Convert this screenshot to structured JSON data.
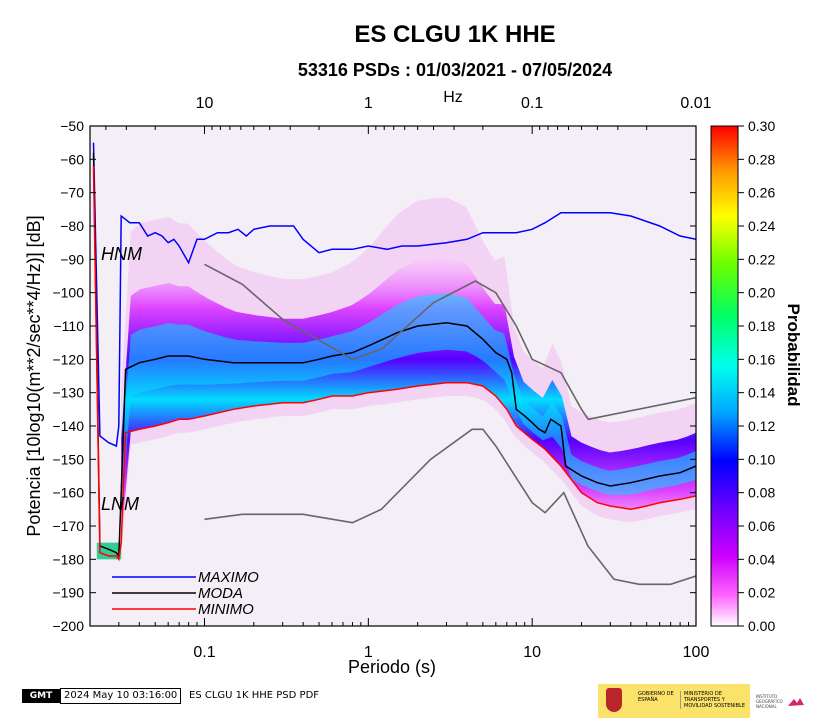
{
  "chart_data": {
    "type": "heatmap",
    "title": "ES CLGU 1K HHE",
    "subtitle": "53316 PSDs : 01/03/2021 - 07/05/2024",
    "xlabel": "Periodo (s)",
    "ylabel": "Potencia [10log10(m**2/sec**4/Hz)] [dB]",
    "top_axis_unit": "Hz",
    "x_scale": "log",
    "xlim": [
      0.02,
      100
    ],
    "ylim": [
      -200,
      -50
    ],
    "x_ticks": [
      0.1,
      1,
      10,
      100
    ],
    "x_tick_labels": [
      "0.1",
      "1",
      "10",
      "100"
    ],
    "top_ticks_hz": [
      10,
      1,
      0.1,
      0.01
    ],
    "top_tick_labels": [
      "10",
      "1",
      "0.1",
      "0.01"
    ],
    "y_ticks": [
      -50,
      -60,
      -70,
      -80,
      -90,
      -100,
      -110,
      -120,
      -130,
      -140,
      -150,
      -160,
      -170,
      -180,
      -190,
      -200
    ],
    "y_tick_labels": [
      "−50",
      "−60",
      "−70",
      "−80",
      "−90",
      "−100",
      "−110",
      "−120",
      "−130",
      "−140",
      "−150",
      "−160",
      "−170",
      "−180",
      "−190",
      "−200"
    ],
    "colorbar": {
      "label": "Probabilidad",
      "range": [
        0,
        0.3
      ],
      "ticks": [
        "0.00",
        "0.02",
        "0.04",
        "0.06",
        "0.08",
        "0.10",
        "0.12",
        "0.14",
        "0.16",
        "0.18",
        "0.20",
        "0.22",
        "0.24",
        "0.26",
        "0.28",
        "0.30"
      ]
    },
    "annotations": [
      "HNM",
      "LNM"
    ],
    "series": [
      {
        "name": "MAXIMO",
        "color": "#0000ff",
        "x": [
          0.021,
          0.023,
          0.026,
          0.029,
          0.03,
          0.031,
          0.035,
          0.04,
          0.045,
          0.05,
          0.055,
          0.06,
          0.065,
          0.07,
          0.08,
          0.09,
          0.1,
          0.12,
          0.14,
          0.16,
          0.18,
          0.2,
          0.25,
          0.3,
          0.35,
          0.4,
          0.5,
          0.6,
          0.8,
          1.0,
          1.3,
          1.6,
          2,
          3,
          4,
          5,
          6,
          8,
          10,
          12,
          15,
          20,
          30,
          40,
          60,
          80,
          100
        ],
        "y": [
          -55,
          -143,
          -145,
          -146,
          -140,
          -77,
          -79,
          -79,
          -83,
          -82,
          -83,
          -85,
          -84,
          -86,
          -91,
          -84,
          -84,
          -82,
          -82,
          -81,
          -83,
          -81,
          -80,
          -80,
          -80,
          -84,
          -88,
          -87,
          -87,
          -86,
          -87,
          -86,
          -86,
          -85,
          -84,
          -82,
          -82,
          -82,
          -81,
          -79,
          -76,
          -76,
          -76,
          -77,
          -80,
          -83,
          -84
        ]
      },
      {
        "name": "MODA",
        "color": "#000000",
        "x": [
          0.021,
          0.023,
          0.026,
          0.029,
          0.03,
          0.031,
          0.033,
          0.04,
          0.05,
          0.06,
          0.07,
          0.08,
          0.1,
          0.15,
          0.2,
          0.3,
          0.4,
          0.5,
          0.6,
          0.8,
          1.0,
          1.5,
          2,
          3,
          4,
          5,
          6,
          7,
          7.5,
          8,
          9,
          10,
          11,
          12,
          13,
          14,
          15,
          16,
          20,
          25,
          30,
          40,
          60,
          80,
          100
        ],
        "y": [
          -58,
          -176,
          -177,
          -178,
          -179,
          -160,
          -123,
          -121,
          -120,
          -119,
          -119,
          -119,
          -120,
          -121,
          -121,
          -121,
          -121,
          -120,
          -119,
          -118,
          -116,
          -112,
          -110,
          -109,
          -110,
          -114,
          -118,
          -120,
          -124,
          -135,
          -137,
          -139,
          -141,
          -142,
          -138,
          -139,
          -140,
          -152,
          -155,
          -157,
          -158,
          -157,
          -155,
          -154,
          -152
        ]
      },
      {
        "name": "MINIMO",
        "color": "#ff0000",
        "x": [
          0.021,
          0.023,
          0.026,
          0.029,
          0.03,
          0.031,
          0.033,
          0.04,
          0.05,
          0.06,
          0.07,
          0.08,
          0.1,
          0.15,
          0.2,
          0.3,
          0.4,
          0.5,
          0.6,
          0.8,
          1.0,
          1.5,
          2,
          3,
          4,
          5,
          6,
          7,
          8,
          10,
          12,
          15,
          20,
          25,
          30,
          40,
          50,
          60,
          80,
          100
        ],
        "y": [
          -62,
          -178,
          -179,
          -179,
          -180,
          -175,
          -142,
          -141,
          -140,
          -139,
          -138,
          -138,
          -137,
          -135,
          -134,
          -133,
          -133,
          -132,
          -131,
          -131,
          -130,
          -129,
          -128,
          -127,
          -127,
          -128,
          -131,
          -135,
          -140,
          -144,
          -147,
          -152,
          -160,
          -163,
          -164,
          -165,
          -164,
          -163,
          -162,
          -161
        ]
      },
      {
        "name": "HNM",
        "color": "#666666",
        "x": [
          0.1,
          0.17,
          0.3,
          0.8,
          1.2,
          2.5,
          4.5,
          6,
          8,
          10,
          15,
          20,
          22,
          100
        ],
        "y": [
          -91.5,
          -97.5,
          -108,
          -120,
          -117,
          -103,
          -96.5,
          -100,
          -110,
          -120,
          -124,
          -135,
          -138,
          -131.5
        ]
      },
      {
        "name": "LNM",
        "color": "#666666",
        "x": [
          0.1,
          0.17,
          0.4,
          0.8,
          1.2,
          2.4,
          4.3,
          5,
          6,
          10,
          12,
          15.6,
          21.9,
          31.6,
          45,
          70,
          100
        ],
        "y": [
          -168,
          -166.5,
          -166.5,
          -169,
          -165,
          -150,
          -141,
          -141,
          -146,
          -163,
          -166,
          -160,
          -176,
          -186,
          -187.5,
          -187.5,
          -185
        ]
      }
    ]
  },
  "legend": [
    {
      "label": "MAXIMO",
      "color": "#0000ff"
    },
    {
      "label": "MODA",
      "color": "#000000"
    },
    {
      "label": "MINIMO",
      "color": "#ff0000"
    }
  ],
  "footer": {
    "logo_text": "GMT",
    "timestamp": "2024 May 10 03:16:00",
    "filename": "ES CLGU 1K HHE PSD PDF",
    "gov_text": "GOBIERNO DE ESPAÑA",
    "ministry_text": "MINISTERIO DE TRANSPORTES Y MOVILIDAD SOSTENIBLE",
    "ign_text": "INSTITUTO GEOGRÁFICO NACIONAL"
  }
}
